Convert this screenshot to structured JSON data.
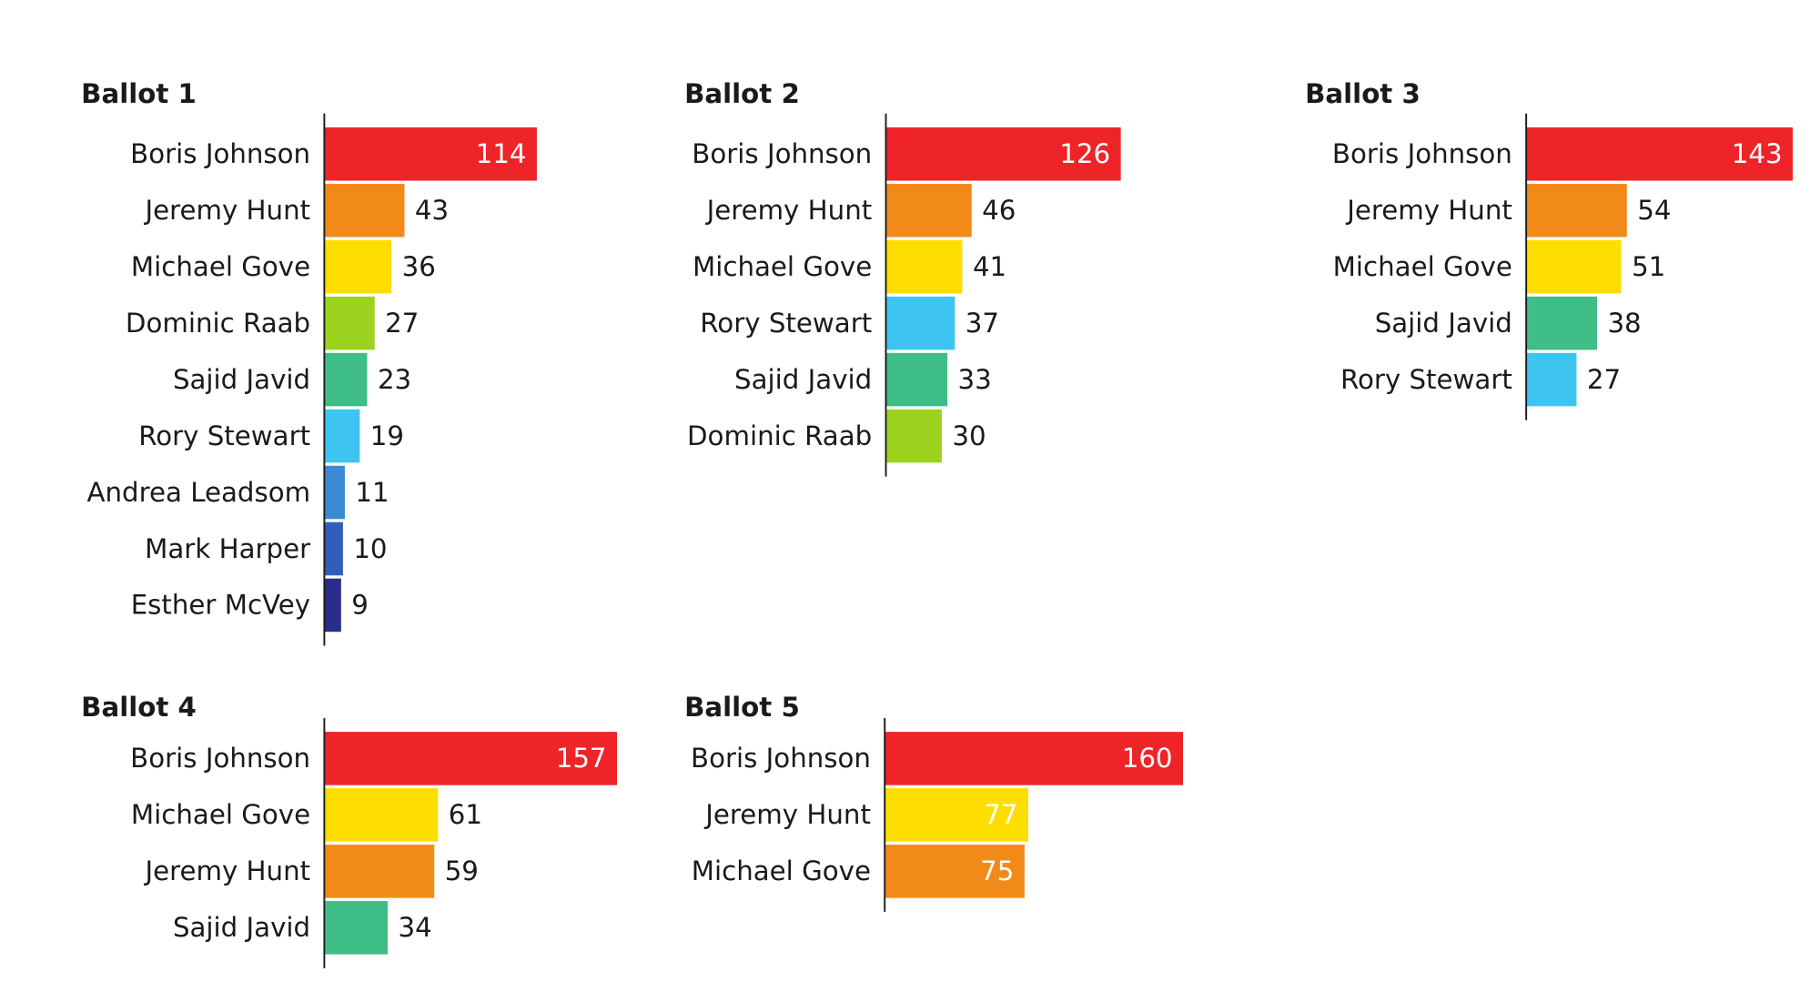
{
  "chart_data": [
    {
      "type": "bar",
      "title": "Ballot 1",
      "categories": [
        "Boris Johnson",
        "Jeremy Hunt",
        "Michael Gove",
        "Dominic Raab",
        "Sajid Javid",
        "Rory Stewart",
        "Andrea Leadsom",
        "Mark Harper",
        "Esther McVey"
      ],
      "values": [
        114,
        43,
        36,
        27,
        23,
        19,
        11,
        10,
        9
      ],
      "colors": [
        "#ee2428",
        "#f28a1a",
        "#fedd00",
        "#9bd31f",
        "#3ebd87",
        "#3ec4f1",
        "#3a8ad6",
        "#2f5fb8",
        "#2b2d8c"
      ]
    },
    {
      "type": "bar",
      "title": "Ballot 2",
      "categories": [
        "Boris Johnson",
        "Jeremy Hunt",
        "Michael Gove",
        "Rory Stewart",
        "Sajid Javid",
        "Dominic Raab"
      ],
      "values": [
        126,
        46,
        41,
        37,
        33,
        30
      ],
      "colors": [
        "#ee2428",
        "#f28a1a",
        "#fedd00",
        "#3ec4f1",
        "#3ebd87",
        "#9bd31f"
      ]
    },
    {
      "type": "bar",
      "title": "Ballot 3",
      "categories": [
        "Boris Johnson",
        "Jeremy Hunt",
        "Michael Gove",
        "Sajid Javid",
        "Rory Stewart"
      ],
      "values": [
        143,
        54,
        51,
        38,
        27
      ],
      "colors": [
        "#ee2428",
        "#f28a1a",
        "#fedd00",
        "#3ebd87",
        "#3ec4f1"
      ]
    },
    {
      "type": "bar",
      "title": "Ballot 4",
      "categories": [
        "Boris Johnson",
        "Michael Gove",
        "Jeremy Hunt",
        "Sajid Javid"
      ],
      "values": [
        157,
        61,
        59,
        34
      ],
      "colors": [
        "#ee2428",
        "#fedd00",
        "#f28a1a",
        "#3ebd87"
      ]
    },
    {
      "type": "bar",
      "title": "Ballot 5",
      "categories": [
        "Boris Johnson",
        "Jeremy Hunt",
        "Michael Gove"
      ],
      "values": [
        160,
        77,
        75
      ],
      "colors": [
        "#ee2428",
        "#fedd00",
        "#f28a1a"
      ]
    }
  ]
}
